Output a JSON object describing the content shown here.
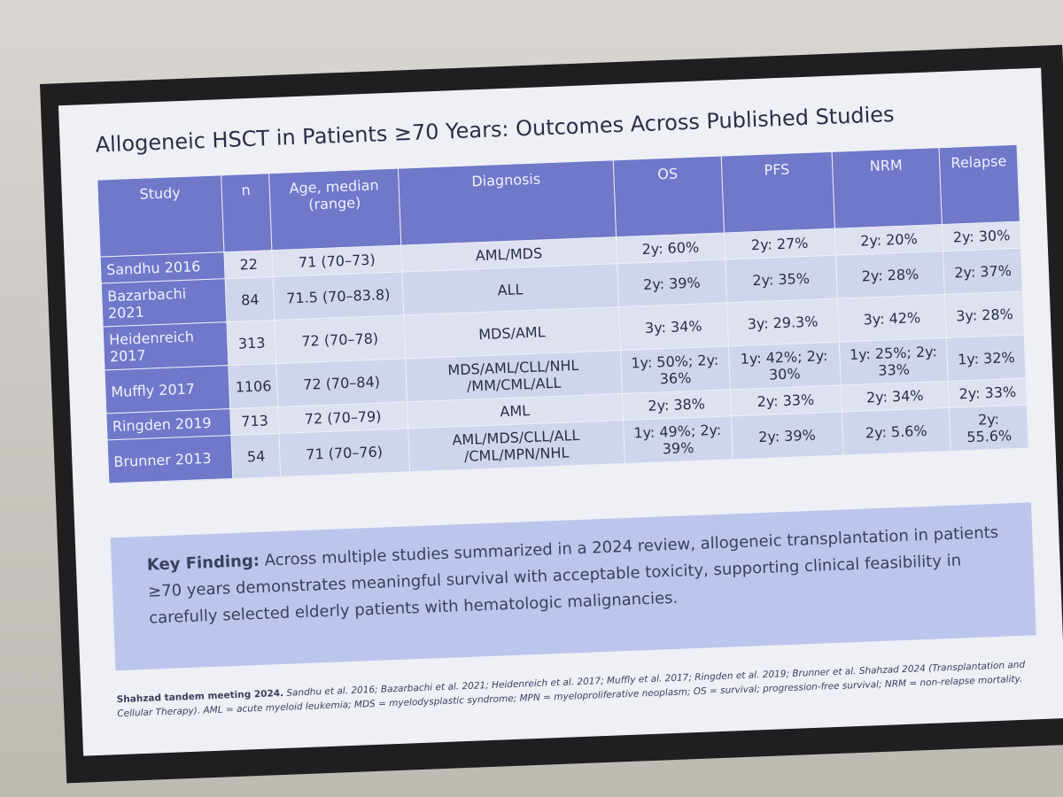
{
  "slide": {
    "title": "Allogeneic HSCT in Patients ≥70 Years: Outcomes Across Published Studies",
    "table": {
      "header": [
        "Study",
        "n",
        "Age, median (range)",
        "Diagnosis",
        "OS",
        "PFS",
        "NRM",
        "Relapse"
      ],
      "rows": [
        [
          "Sandhu 2016",
          "22",
          "71 (70–73)",
          "AML/MDS",
          "2y: 60%",
          "2y: 27%",
          "2y: 20%",
          "2y: 30%"
        ],
        [
          "Bazarbachi 2021",
          "84",
          "71.5 (70–83.8)",
          "ALL",
          "2y: 39%",
          "2y: 35%",
          "2y: 28%",
          "2y: 37%"
        ],
        [
          "Heidenreich 2017",
          "313",
          "72 (70–78)",
          "MDS/AML",
          "3y: 34%",
          "3y: 29.3%",
          "3y: 42%",
          "3y: 28%"
        ],
        [
          "Muffly 2017",
          "1106",
          "72 (70–84)",
          "MDS/AML/CLL/NHL /MM/CML/ALL",
          "1y: 50%; 2y: 36%",
          "1y: 42%; 2y: 30%",
          "1y: 25%; 2y: 33%",
          "1y: 32%"
        ],
        [
          "Ringden 2019",
          "713",
          "72 (70–79)",
          "AML",
          "2y: 38%",
          "2y: 33%",
          "2y: 34%",
          "2y: 33%"
        ],
        [
          "Brunner 2013",
          "54",
          "71 (70–76)",
          "AML/MDS/CLL/ALL /CML/MPN/NHL",
          "1y: 49%; 2y: 39%",
          "2y: 39%",
          "2y: 5.6%",
          "2y: 55.6%"
        ]
      ]
    },
    "key_finding": {
      "label": "Key Finding:",
      "text": "Across multiple studies summarized in a 2024 review, allogeneic transplantation in patients ≥70 years demonstrates meaningful survival with acceptable toxicity, supporting clinical feasibility in carefully selected elderly patients with hematologic malignancies."
    },
    "footnote": {
      "lead": "Shahzad tandem meeting 2024.",
      "text": "Sandhu et al. 2016; Bazarbachi et al. 2021; Heidenreich et al. 2017; Muffly et al. 2017; Ringden et al. 2019; Brunner et al. Shahzad 2024 (Transplantation and Cellular Therapy). AML = acute myeloid leukemia; MDS = myelodysplastic syndrome; MPN = myeloproliferative neoplasm; OS = survival; progression-free survival; NRM = non-relapse mortality."
    }
  }
}
